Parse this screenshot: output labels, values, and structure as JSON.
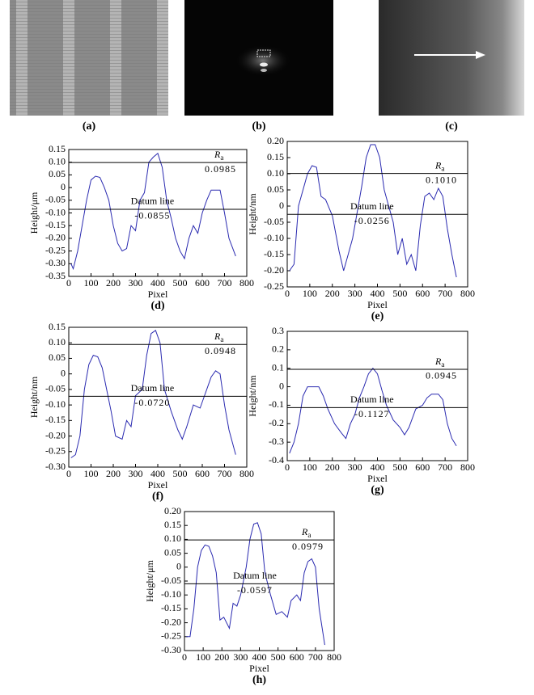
{
  "images": [
    {
      "label": "(a)"
    },
    {
      "label": "(b)"
    },
    {
      "label": "(c)"
    }
  ],
  "chart_data": [
    {
      "type": "line",
      "label": "(d)",
      "ylabel": "Height/μm",
      "xlabel": "Pixel",
      "xlim": [
        0,
        800
      ],
      "xticks": [
        0,
        100,
        200,
        300,
        400,
        500,
        600,
        700,
        800
      ],
      "ylim": [
        -0.35,
        0.15
      ],
      "yticks": [
        0.15,
        {
          "value": 0.1,
          "label": "0.10"
        },
        0.05,
        0,
        -0.05,
        {
          "value": -0.1,
          "label": "-0.10"
        },
        -0.15,
        {
          "value": -0.2,
          "label": "-0.20"
        },
        -0.25,
        {
          "value": -0.3,
          "label": "-0.30"
        },
        -0.35
      ],
      "ra_line": {
        "symbol": "R",
        "subscript": "a",
        "value": 0.0985
      },
      "datum_line": {
        "name": "Datum line",
        "value": -0.0855
      },
      "series": [
        {
          "color": "#2a2ab0",
          "x": [
            10,
            20,
            40,
            60,
            80,
            100,
            120,
            140,
            160,
            180,
            200,
            220,
            240,
            260,
            280,
            300,
            320,
            340,
            360,
            380,
            400,
            420,
            440,
            460,
            480,
            500,
            520,
            540,
            560,
            580,
            600,
            620,
            640,
            660,
            680,
            700,
            720,
            750
          ],
          "values": [
            -0.3,
            -0.32,
            -0.25,
            -0.15,
            -0.05,
            0.03,
            0.045,
            0.04,
            0,
            -0.05,
            -0.15,
            -0.22,
            -0.25,
            -0.24,
            -0.15,
            -0.17,
            -0.05,
            -0.02,
            0.1,
            0.12,
            0.135,
            0.08,
            -0.05,
            -0.12,
            -0.2,
            -0.25,
            -0.28,
            -0.2,
            -0.15,
            -0.18,
            -0.1,
            -0.05,
            -0.01,
            -0.01,
            -0.01,
            -0.1,
            -0.2,
            -0.27
          ]
        }
      ]
    },
    {
      "type": "line",
      "label": "(e)",
      "ylabel": "Height/nm",
      "xlabel": "Pixel",
      "xlim": [
        0,
        800
      ],
      "xticks": [
        0,
        100,
        200,
        300,
        400,
        500,
        600,
        700,
        800
      ],
      "ylim": [
        -0.25,
        0.2
      ],
      "yticks": [
        {
          "value": 0.2,
          "label": "0.20"
        },
        0.15,
        {
          "value": 0.1,
          "label": "0.10"
        },
        0.05,
        0,
        -0.05,
        {
          "value": -0.1,
          "label": "-0.10"
        },
        -0.15,
        {
          "value": -0.2,
          "label": "-0.20"
        },
        -0.25
      ],
      "ra_line": {
        "symbol": "R",
        "subscript": "a",
        "value": 0.101,
        "value_label": "0.1010"
      },
      "datum_line": {
        "name": "Datum line",
        "value": -0.0256
      },
      "series": [
        {
          "color": "#2a2ab0",
          "x": [
            10,
            30,
            50,
            70,
            90,
            110,
            130,
            150,
            170,
            200,
            230,
            250,
            270,
            290,
            310,
            330,
            350,
            370,
            390,
            410,
            430,
            450,
            470,
            490,
            510,
            530,
            550,
            570,
            590,
            610,
            630,
            650,
            670,
            690,
            710,
            730,
            750
          ],
          "values": [
            -0.2,
            -0.18,
            0,
            0.05,
            0.1,
            0.125,
            0.12,
            0.03,
            0.02,
            -0.03,
            -0.14,
            -0.2,
            -0.15,
            -0.1,
            -0.02,
            0.06,
            0.15,
            0.19,
            0.19,
            0.15,
            0.05,
            0,
            -0.05,
            -0.15,
            -0.1,
            -0.18,
            -0.15,
            -0.2,
            -0.06,
            0.03,
            0.04,
            0.02,
            0.055,
            0.03,
            -0.07,
            -0.15,
            -0.22
          ]
        }
      ]
    },
    {
      "type": "line",
      "label": "(f)",
      "ylabel": "Height/nm",
      "xlabel": "Pixel",
      "xlim": [
        0,
        800
      ],
      "xticks": [
        0,
        100,
        200,
        300,
        400,
        500,
        600,
        700,
        800
      ],
      "ylim": [
        -0.3,
        0.15
      ],
      "yticks": [
        0.15,
        {
          "value": 0.1,
          "label": "0.10"
        },
        0.05,
        0,
        -0.05,
        {
          "value": -0.1,
          "label": "-0.10"
        },
        -0.15,
        {
          "value": -0.2,
          "label": "-0.20"
        },
        -0.25,
        {
          "value": -0.3,
          "label": "-0.30"
        }
      ],
      "ra_line": {
        "symbol": "R",
        "subscript": "a",
        "value": 0.0948
      },
      "datum_line": {
        "name": "Datum line",
        "value": -0.072,
        "value_label": "-0.0720"
      },
      "series": [
        {
          "color": "#2a2ab0",
          "x": [
            10,
            30,
            50,
            70,
            90,
            110,
            130,
            150,
            170,
            190,
            210,
            240,
            260,
            280,
            300,
            330,
            350,
            370,
            390,
            410,
            430,
            460,
            490,
            510,
            530,
            560,
            590,
            620,
            640,
            660,
            680,
            700,
            720,
            750
          ],
          "values": [
            -0.27,
            -0.26,
            -0.2,
            -0.05,
            0.03,
            0.06,
            0.055,
            0.02,
            -0.05,
            -0.12,
            -0.2,
            -0.21,
            -0.15,
            -0.17,
            -0.07,
            -0.05,
            0.06,
            0.13,
            0.14,
            0.1,
            -0.05,
            -0.12,
            -0.18,
            -0.21,
            -0.17,
            -0.1,
            -0.11,
            -0.05,
            -0.01,
            0.01,
            0,
            -0.1,
            -0.18,
            -0.26
          ]
        }
      ]
    },
    {
      "type": "line",
      "label": "(g)",
      "ylabel": "Height/nm",
      "xlabel": "Pixel",
      "xlim": [
        0,
        800
      ],
      "xticks": [
        0,
        100,
        200,
        300,
        400,
        500,
        600,
        700,
        800
      ],
      "ylim": [
        -0.4,
        0.3
      ],
      "yticks": [
        0.3,
        0.2,
        0.1,
        0,
        -0.1,
        -0.2,
        -0.3,
        -0.4
      ],
      "ra_line": {
        "symbol": "R",
        "subscript": "a",
        "value": 0.0945
      },
      "datum_line": {
        "name": "Datum line",
        "value": -0.1127
      },
      "series": [
        {
          "color": "#2a2ab0",
          "x": [
            10,
            30,
            50,
            70,
            90,
            120,
            140,
            160,
            180,
            210,
            240,
            260,
            280,
            300,
            320,
            340,
            360,
            380,
            400,
            420,
            440,
            470,
            500,
            520,
            540,
            570,
            600,
            620,
            640,
            670,
            690,
            710,
            730,
            750
          ],
          "values": [
            -0.36,
            -0.3,
            -0.2,
            -0.05,
            0,
            0,
            0,
            -0.05,
            -0.12,
            -0.2,
            -0.25,
            -0.28,
            -0.2,
            -0.15,
            -0.06,
            0,
            0.07,
            0.1,
            0.07,
            -0.02,
            -0.1,
            -0.18,
            -0.22,
            -0.26,
            -0.22,
            -0.12,
            -0.1,
            -0.06,
            -0.04,
            -0.04,
            -0.07,
            -0.2,
            -0.28,
            -0.32
          ]
        }
      ]
    },
    {
      "type": "line",
      "label": "(h)",
      "ylabel": "Height/μm",
      "xlabel": "Pixel",
      "xlim": [
        0,
        800
      ],
      "xticks": [
        0,
        100,
        200,
        300,
        400,
        500,
        600,
        700,
        800
      ],
      "ylim": [
        -0.3,
        0.2
      ],
      "yticks": [
        {
          "value": 0.2,
          "label": "0.20"
        },
        0.15,
        {
          "value": 0.1,
          "label": "0.10"
        },
        0.05,
        0,
        -0.05,
        {
          "value": -0.1,
          "label": "-0.10"
        },
        -0.15,
        {
          "value": -0.2,
          "label": "-0.20"
        },
        -0.25,
        {
          "value": -0.3,
          "label": "-0.30"
        }
      ],
      "ra_line": {
        "symbol": "R",
        "subscript": "a",
        "value": 0.0979
      },
      "datum_line": {
        "name": "Datum line",
        "value": -0.0597
      },
      "series": [
        {
          "color": "#2a2ab0",
          "x": [
            10,
            30,
            50,
            70,
            90,
            110,
            130,
            150,
            170,
            190,
            210,
            240,
            260,
            280,
            300,
            330,
            350,
            370,
            390,
            410,
            430,
            460,
            490,
            520,
            550,
            570,
            600,
            620,
            640,
            660,
            680,
            700,
            720,
            750
          ],
          "values": [
            -0.25,
            -0.25,
            -0.15,
            0,
            0.06,
            0.08,
            0.075,
            0.04,
            -0.02,
            -0.19,
            -0.18,
            -0.22,
            -0.13,
            -0.14,
            -0.1,
            0,
            0.1,
            0.155,
            0.16,
            0.12,
            -0.02,
            -0.1,
            -0.17,
            -0.16,
            -0.18,
            -0.12,
            -0.1,
            -0.12,
            -0.02,
            0.02,
            0.03,
            0,
            -0.15,
            -0.28
          ]
        }
      ]
    }
  ]
}
